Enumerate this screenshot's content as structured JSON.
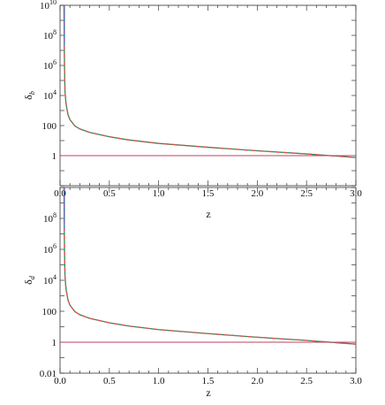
{
  "chart_data": [
    {
      "type": "line",
      "title": "",
      "xlabel": "z",
      "ylabel": "δ",
      "ylabel_sub": "b",
      "xlim": [
        0,
        3
      ],
      "ylim": [
        0.01,
        10000000000
      ],
      "yscale": "log",
      "grid": false,
      "x_ticks": [
        0.0,
        0.5,
        1.0,
        1.5,
        2.0,
        2.5,
        3.0
      ],
      "x_tick_labels": [
        "0.0",
        "0.5",
        "1.0",
        "1.5",
        "2.0",
        "2.5",
        "3.0"
      ],
      "y_ticks": [
        1,
        100,
        10000,
        1000000,
        100000000,
        10000000000
      ],
      "y_tick_labels": [
        {
          "base": "1",
          "exp": ""
        },
        {
          "base": "100",
          "exp": ""
        },
        {
          "base": "10",
          "exp": "4"
        },
        {
          "base": "10",
          "exp": "6"
        },
        {
          "base": "10",
          "exp": "8"
        },
        {
          "base": "10",
          "exp": "10"
        }
      ],
      "series": [
        {
          "color": "#2e8b57",
          "style": "solid",
          "x": [
            0.04,
            0.045,
            0.05,
            0.06,
            0.08,
            0.1,
            0.15,
            0.2,
            0.3,
            0.5,
            0.7,
            1.0,
            1.5,
            2.0,
            2.5,
            3.0
          ],
          "y": [
            10000000000,
            1000000,
            20000,
            3000,
            550,
            250,
            95,
            60,
            35,
            18,
            11,
            6.5,
            3.6,
            2.1,
            1.3,
            0.75
          ]
        },
        {
          "color": "#e05050",
          "style": "dashed",
          "x": [
            0.04,
            0.045,
            0.05,
            0.06,
            0.08,
            0.1,
            0.15,
            0.2,
            0.3,
            0.5,
            0.7,
            1.0,
            1.5,
            2.0,
            2.5,
            3.0
          ],
          "y": [
            10000000000,
            1000000,
            20000,
            3000,
            550,
            250,
            95,
            60,
            35,
            18,
            11,
            6.5,
            3.6,
            2.1,
            1.3,
            0.75
          ]
        },
        {
          "color": "#4060d0",
          "style": "solid",
          "x": [
            0.045,
            0.045
          ],
          "y": [
            20000000,
            10000000000
          ]
        },
        {
          "color": "#c04060",
          "style": "solid",
          "x": [
            0,
            3
          ],
          "y": [
            1,
            1
          ]
        }
      ]
    },
    {
      "type": "line",
      "title": "",
      "xlabel": "z",
      "ylabel": "δ",
      "ylabel_sub": "d",
      "xlim": [
        0,
        3
      ],
      "ylim": [
        0.01,
        10000000000
      ],
      "yscale": "log",
      "grid": false,
      "x_ticks": [
        0.0,
        0.5,
        1.0,
        1.5,
        2.0,
        2.5,
        3.0
      ],
      "x_tick_labels": [
        "0.0",
        "0.5",
        "1.0",
        "1.5",
        "2.0",
        "2.5",
        "3.0"
      ],
      "y_ticks": [
        0.01,
        1,
        100,
        10000,
        1000000,
        100000000
      ],
      "y_tick_labels": [
        {
          "base": "0.01",
          "exp": ""
        },
        {
          "base": "1",
          "exp": ""
        },
        {
          "base": "100",
          "exp": ""
        },
        {
          "base": "10",
          "exp": "4"
        },
        {
          "base": "10",
          "exp": "6"
        },
        {
          "base": "10",
          "exp": "8"
        }
      ],
      "series": [
        {
          "color": "#2e8b57",
          "style": "solid",
          "x": [
            0.04,
            0.045,
            0.05,
            0.06,
            0.08,
            0.1,
            0.15,
            0.2,
            0.3,
            0.5,
            0.7,
            1.0,
            1.5,
            2.0,
            2.5,
            3.0
          ],
          "y": [
            10000000000,
            1000000,
            20000,
            3000,
            550,
            250,
            95,
            60,
            35,
            18,
            11,
            6.5,
            3.6,
            2.1,
            1.3,
            0.75
          ]
        },
        {
          "color": "#e05050",
          "style": "dashed",
          "x": [
            0.04,
            0.045,
            0.05,
            0.06,
            0.08,
            0.1,
            0.15,
            0.2,
            0.3,
            0.5,
            0.7,
            1.0,
            1.5,
            2.0,
            2.5,
            3.0
          ],
          "y": [
            10000000000,
            1000000,
            20000,
            3000,
            550,
            250,
            95,
            60,
            35,
            18,
            11,
            6.5,
            3.6,
            2.1,
            1.3,
            0.75
          ]
        },
        {
          "color": "#4060d0",
          "style": "solid",
          "x": [
            0.045,
            0.045
          ],
          "y": [
            20000000,
            10000000000
          ]
        },
        {
          "color": "#c04060",
          "style": "solid",
          "x": [
            0,
            3
          ],
          "y": [
            1,
            1
          ]
        }
      ]
    }
  ]
}
